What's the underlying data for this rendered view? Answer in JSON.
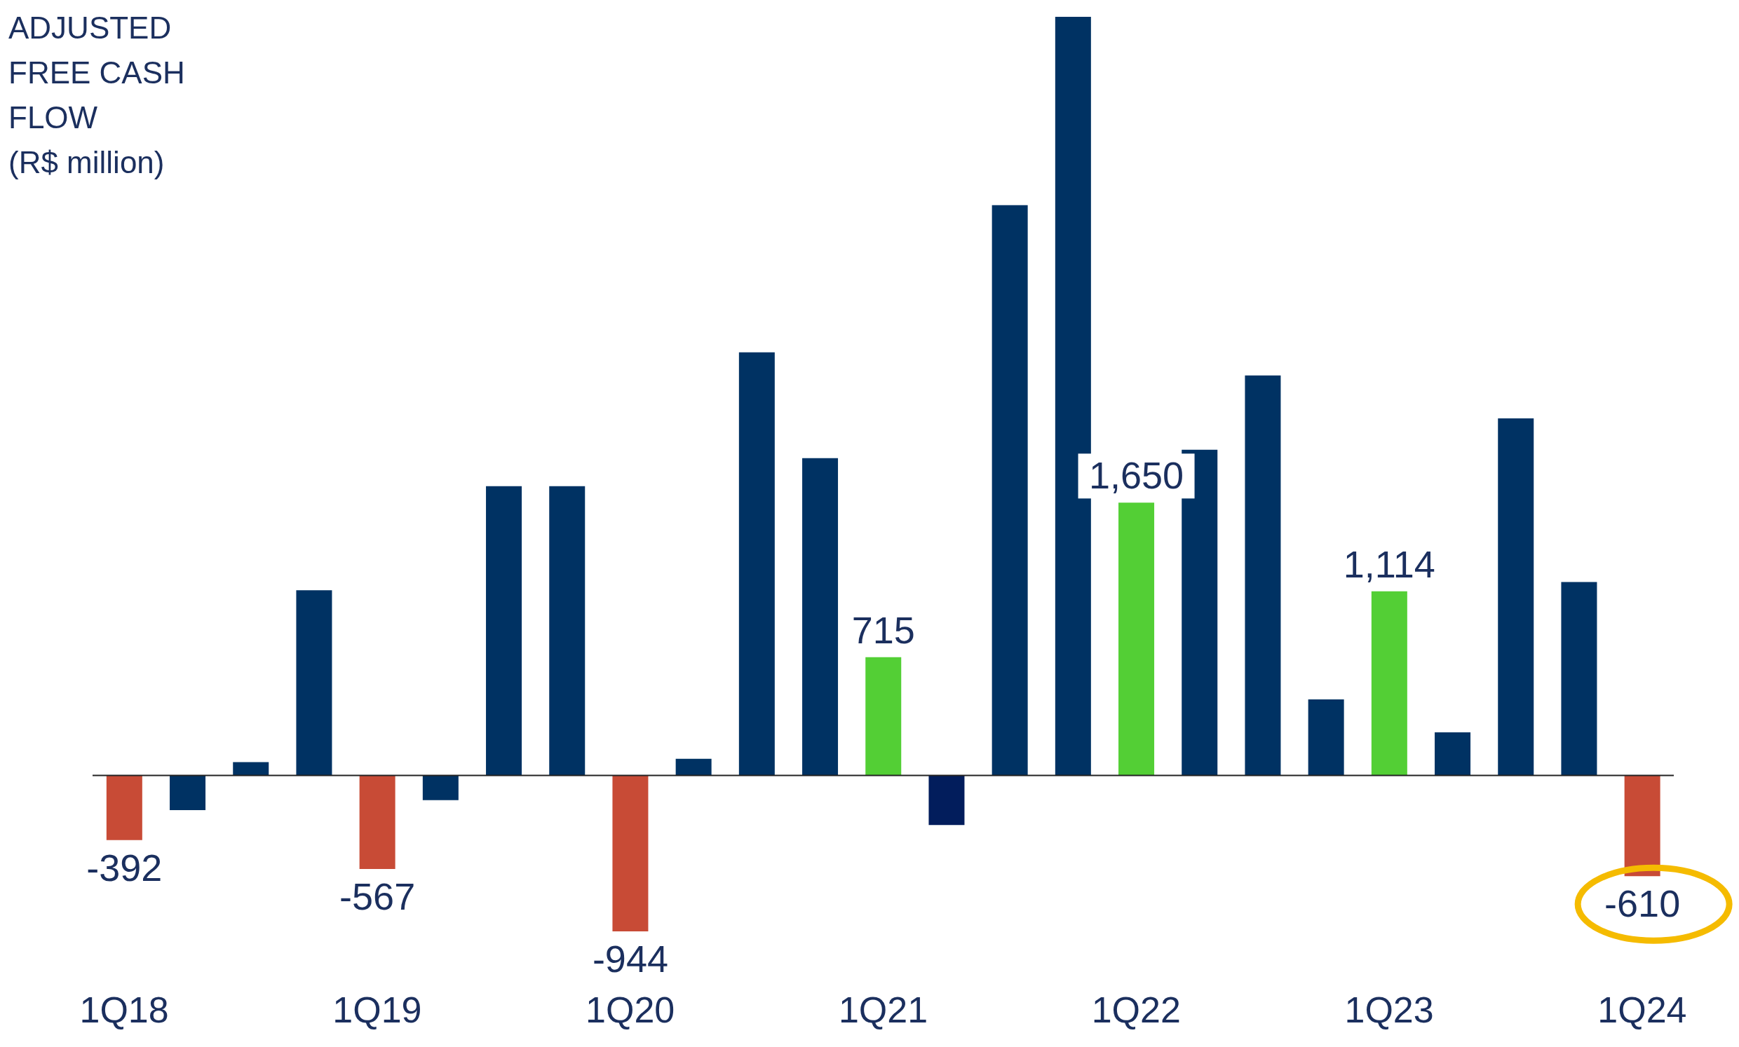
{
  "chart_data": {
    "type": "bar",
    "title": "ADJUSTED FREE CASH FLOW",
    "subtitle": "(R$ million)",
    "categories": [
      "1Q18",
      null,
      null,
      null,
      "1Q19",
      null,
      null,
      null,
      "1Q20",
      null,
      null,
      null,
      "1Q21",
      null,
      null,
      null,
      "1Q22",
      null,
      null,
      null,
      "1Q23",
      null,
      null,
      null,
      "1Q24"
    ],
    "values": [
      -392,
      -210,
      80,
      1120,
      -567,
      -150,
      1750,
      1750,
      -944,
      100,
      2560,
      1920,
      715,
      -300,
      3450,
      4590,
      1650,
      1970,
      2420,
      460,
      1114,
      260,
      2160,
      1170,
      -610
    ],
    "colors": [
      "#c84b36",
      "#003263",
      "#003263",
      "#003263",
      "#c84b36",
      "#003263",
      "#003263",
      "#003263",
      "#c84b36",
      "#003263",
      "#003263",
      "#003263",
      "#53cf35",
      "#021d5c",
      "#003263",
      "#003263",
      "#53cf35",
      "#003263",
      "#003263",
      "#003263",
      "#53cf35",
      "#003263",
      "#003263",
      "#003263",
      "#c84b36"
    ],
    "value_labels": [
      "-392",
      null,
      null,
      null,
      "-567",
      null,
      null,
      null,
      "-944",
      null,
      null,
      null,
      "715",
      null,
      null,
      null,
      "1,650",
      null,
      null,
      null,
      "1,114",
      null,
      null,
      null,
      "-610"
    ],
    "ref_lines": [
      {
        "axis": "y",
        "value": 0,
        "color": "#222222"
      }
    ]
  }
}
